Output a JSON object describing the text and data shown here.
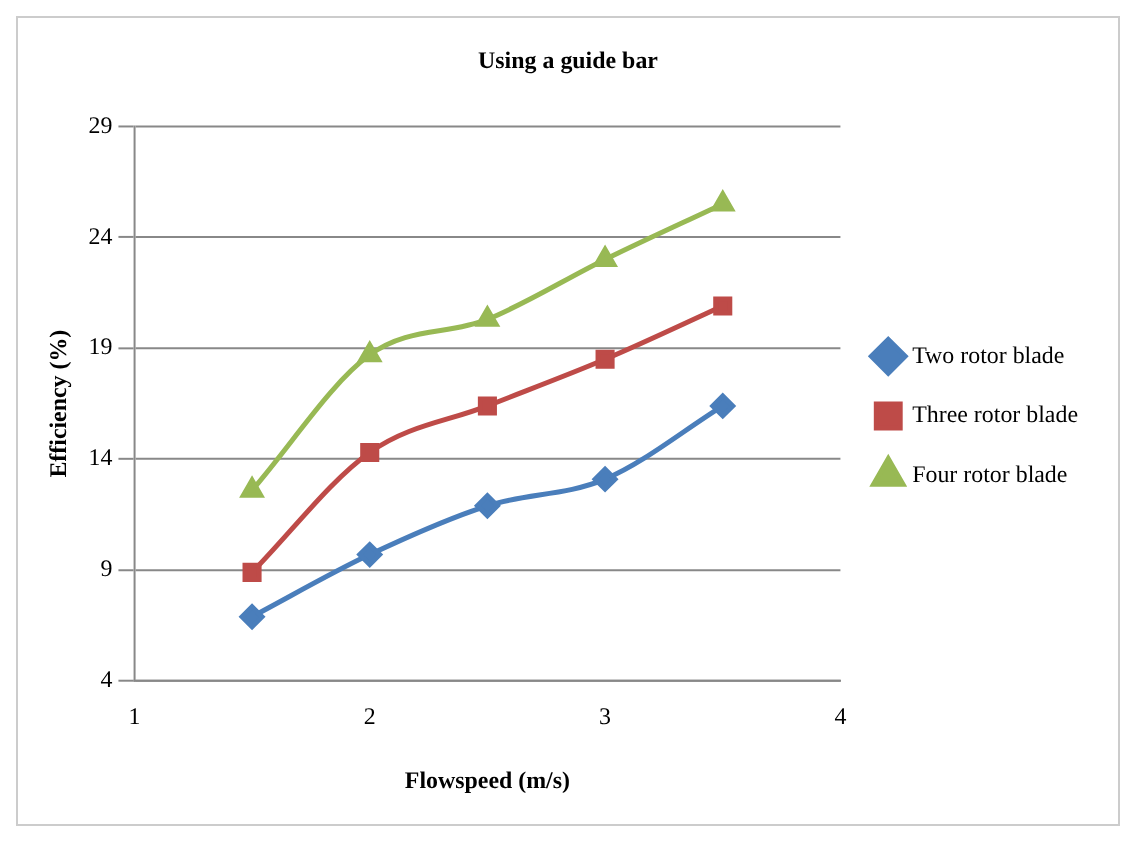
{
  "chart_data": {
    "type": "line",
    "title": "Using a guide bar",
    "xlabel": "Flowspeed (m/s)",
    "ylabel": "Efficiency (%)",
    "x": [
      1.5,
      2,
      2.5,
      3,
      3.5
    ],
    "series": [
      {
        "name": "Two rotor blade",
        "color": "#4a7ebb",
        "marker": "diamond",
        "values": [
          6.9,
          9.7,
          11.9,
          13.1,
          16.4
        ]
      },
      {
        "name": "Three rotor blade",
        "color": "#be4b48",
        "marker": "square",
        "values": [
          8.9,
          14.3,
          16.4,
          18.5,
          20.9
        ]
      },
      {
        "name": "Four rotor blade",
        "color": "#98b954",
        "marker": "triangle",
        "values": [
          12.6,
          18.7,
          20.3,
          23.0,
          25.5
        ]
      }
    ],
    "xlim": [
      1,
      4
    ],
    "xticks": [
      1,
      2,
      3,
      4
    ],
    "ylim": [
      4,
      29
    ],
    "yticks": [
      4,
      9,
      14,
      19,
      24,
      29
    ],
    "grid": "y",
    "legend": "right"
  }
}
